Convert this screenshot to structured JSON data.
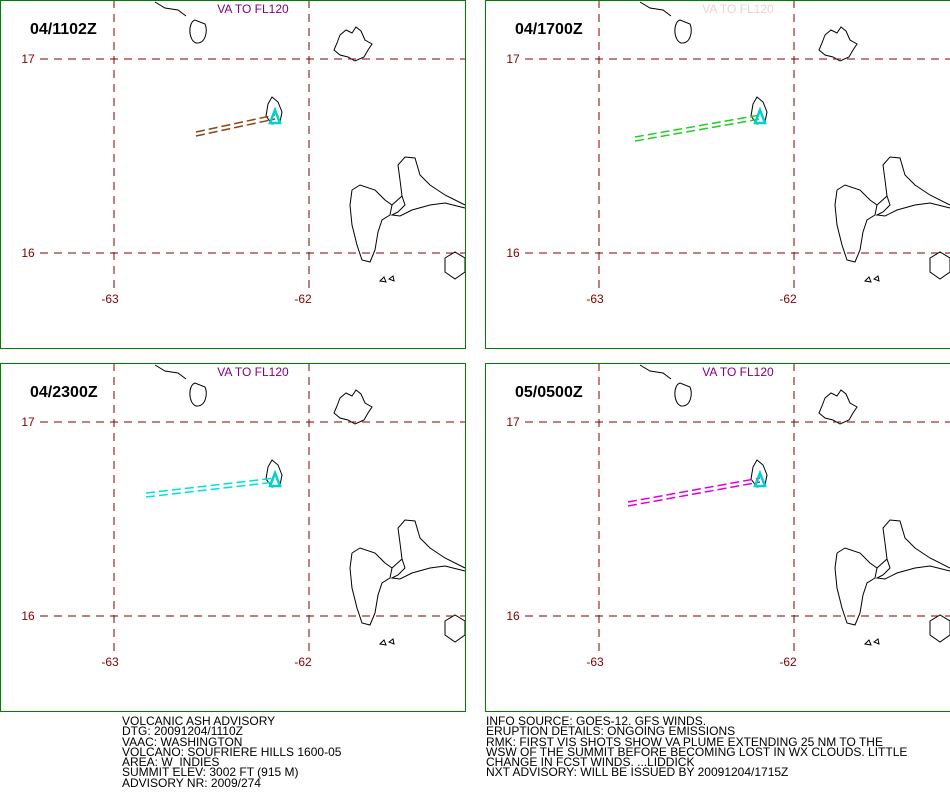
{
  "panels": [
    {
      "time": "04/1102Z",
      "label": "VA TO FL120",
      "lat_labels": [
        "17",
        "16"
      ],
      "lon_labels": [
        "-63",
        "-62"
      ]
    },
    {
      "time": "04/1700Z",
      "label": "VA TO FL120",
      "lat_labels": [
        "17",
        "16"
      ],
      "lon_labels": [
        "-63",
        "-62"
      ]
    },
    {
      "time": "04/2300Z",
      "label": "VA TO FL120",
      "lat_labels": [
        "17",
        "16"
      ],
      "lon_labels": [
        "-63",
        "-62"
      ]
    },
    {
      "time": "05/0500Z",
      "label": "VA TO FL120",
      "lat_labels": [
        "17",
        "16"
      ],
      "lon_labels": [
        "-63",
        "-62"
      ]
    }
  ],
  "advisory_left": [
    "VOLCANIC ASH ADVISORY",
    "DTG: 20091204/1110Z",
    "VAAC: WASHINGTON",
    "VOLCANO: SOUFRIERE HILLS 1600-05",
    "AREA: W_INDIES",
    "SUMMIT ELEV: 3002 FT (915 M)",
    "ADVISORY NR: 2009/274"
  ],
  "advisory_right": [
    "INFO SOURCE: GOES-12. GFS WINDS.",
    "ERUPTION DETAILS: ONGOING EMISSIONS",
    "RMK: FIRST VIS SHOTS SHOW VA PLUME EXTENDING 25 NM TO THE",
    "WSW OF THE SUMMIT BEFORE BECOMING LOST IN WX CLOUDS. LITTLE",
    "CHANGE IN FCST WINDS. ...LIDDICK",
    "NXT ADVISORY: WILL BE ISSUED BY 20091204/1715Z"
  ]
}
